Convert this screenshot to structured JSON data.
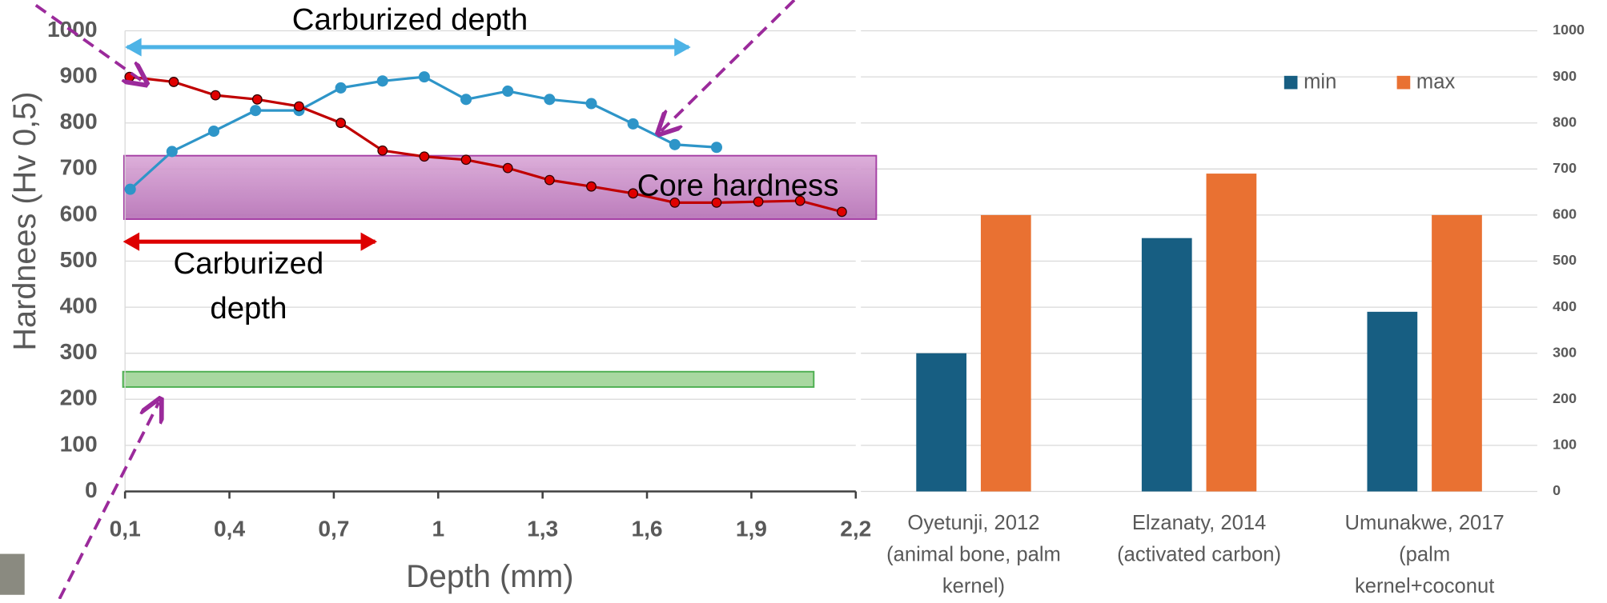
{
  "chart_data": [
    {
      "type": "line",
      "x_label": "Depth (mm)",
      "y_label": "Hardnees (Hv 0,5)",
      "annotations": [
        "Carburized depth",
        "Core hardness",
        "Carburized depth"
      ],
      "xlim": [
        0.1,
        2.2
      ],
      "xticks": [
        {
          "value": 0.1,
          "label": "0,1"
        },
        {
          "value": 0.4,
          "label": "0,4"
        },
        {
          "value": 0.7,
          "label": "0,7"
        },
        1,
        {
          "value": 1.3,
          "label": "1,3"
        },
        {
          "value": 1.6,
          "label": "1,6"
        },
        {
          "value": 1.9,
          "label": "1,9"
        },
        {
          "value": 2.2,
          "label": "2,2"
        }
      ],
      "ylim": [
        0,
        1000
      ],
      "yticks": [
        0,
        100,
        200,
        300,
        400,
        500,
        600,
        700,
        800,
        900,
        1000
      ],
      "grid": true,
      "series": [
        {
          "name": "blue",
          "color": "#2e95c8",
          "x": [
            0.115,
            0.235,
            0.355,
            0.475,
            0.6,
            0.72,
            0.84,
            0.96,
            1.08,
            1.2,
            1.32,
            1.44,
            1.56,
            1.68,
            1.8
          ],
          "values": [
            656,
            738,
            782,
            827,
            827,
            876,
            891,
            900,
            851,
            869,
            851,
            842,
            798,
            753,
            747
          ]
        },
        {
          "name": "red",
          "color": "#c00000",
          "x": [
            0.113,
            0.24,
            0.36,
            0.48,
            0.6,
            0.72,
            0.84,
            0.96,
            1.08,
            1.2,
            1.32,
            1.44,
            1.56,
            1.68,
            1.8,
            1.92,
            2.04,
            2.16
          ],
          "values": [
            900,
            889,
            860,
            851,
            836,
            800,
            740,
            727,
            720,
            702,
            676,
            662,
            647,
            627,
            627,
            629,
            631,
            607
          ]
        }
      ]
    },
    {
      "type": "bar",
      "categories": [
        "Oyetunji, 2012 (animal bone, palm kernel)",
        "Elzanaty, 2014 (activated carbon)",
        "Umunakwe, 2017 (palm kernel+coconut"
      ],
      "series": [
        {
          "name": "min",
          "color": "#175e82",
          "values": [
            300,
            550,
            390
          ]
        },
        {
          "name": "max",
          "color": "#e97132",
          "values": [
            600,
            690,
            600
          ]
        }
      ],
      "ylim": [
        0,
        1000
      ],
      "yticks": [
        0,
        100,
        200,
        300,
        400,
        500,
        600,
        700,
        800,
        900,
        1000
      ],
      "grid": true,
      "legend": "top-right"
    }
  ]
}
